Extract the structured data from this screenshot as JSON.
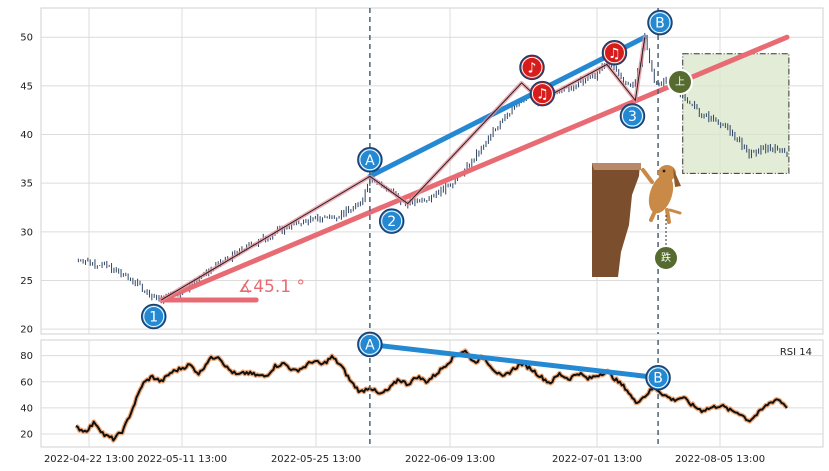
{
  "chart_data": [
    {
      "type": "line",
      "panel": "price",
      "x_ticks": [
        "2022-04-22 13:00",
        "2022-05-11 13:00",
        "2022-05-25 13:00",
        "2022-06-09 13:00",
        "2022-07-01 13:00",
        "2022-08-05 13:00"
      ],
      "y_ticks": [
        20,
        25,
        30,
        35,
        40,
        45,
        50
      ],
      "ylim": [
        19.5,
        53
      ],
      "price_anchors": [
        [
          0,
          27.2
        ],
        [
          3,
          26.6
        ],
        [
          6,
          25.0
        ],
        [
          8,
          23.4
        ],
        [
          9,
          23.0
        ],
        [
          11,
          23.8
        ],
        [
          13,
          25.3
        ],
        [
          15,
          26.6
        ],
        [
          17,
          27.9
        ],
        [
          20,
          29.4
        ],
        [
          22,
          30.4
        ],
        [
          24,
          31.1
        ],
        [
          26,
          31.4
        ],
        [
          28,
          31.8
        ],
        [
          30,
          32.9
        ],
        [
          31,
          35.8
        ],
        [
          32,
          34.9
        ],
        [
          33,
          34.3
        ],
        [
          34,
          33.2
        ],
        [
          35,
          32.9
        ],
        [
          37,
          33.5
        ],
        [
          39,
          34.6
        ],
        [
          41,
          36.3
        ],
        [
          43,
          38.8
        ],
        [
          45,
          41.7
        ],
        [
          47,
          43.5
        ],
        [
          48,
          44.0
        ],
        [
          49,
          43.3
        ],
        [
          50,
          44.4
        ],
        [
          52,
          44.8
        ],
        [
          54,
          45.8
        ],
        [
          55,
          46.2
        ],
        [
          56,
          47.5
        ],
        [
          57,
          46.5
        ],
        [
          58,
          45.2
        ],
        [
          59,
          45.1
        ],
        [
          60,
          50.0
        ],
        [
          61,
          45.3
        ],
        [
          62,
          45.5
        ],
        [
          63,
          45.0
        ],
        [
          64,
          44.0
        ],
        [
          66,
          42.1
        ],
        [
          68,
          41.2
        ],
        [
          70,
          39.2
        ],
        [
          71,
          38.0
        ],
        [
          73,
          38.6
        ],
        [
          75,
          38.2
        ]
      ],
      "overlay_lines": [
        {
          "color": "#e86b74",
          "points": [
            [
              9,
              23.0
            ],
            [
              75,
              50.0
            ]
          ]
        },
        {
          "color": "#e86b74",
          "points": [
            [
              9,
              23.0
            ],
            [
              19,
              23.0
            ]
          ]
        },
        {
          "color": "#2489d2",
          "points": [
            [
              31,
              35.7
            ],
            [
              60,
              50.0
            ]
          ]
        },
        {
          "color": "#e88f99",
          "points": [
            [
              9,
              23.0
            ],
            [
              31,
              35.7
            ],
            [
              35,
              32.9
            ],
            [
              47,
              45.3
            ],
            [
              49,
              43.5
            ],
            [
              56,
              47.2
            ],
            [
              59,
              43.5
            ],
            [
              60,
              50.0
            ]
          ]
        }
      ],
      "markers": [
        {
          "label": "1",
          "x": 8.2,
          "y": 21.3,
          "color": "#2489d2"
        },
        {
          "label": "A",
          "x": 31,
          "y": 37.4,
          "color": "#2489d2"
        },
        {
          "label": "2",
          "x": 33.3,
          "y": 31.1,
          "color": "#2489d2"
        },
        {
          "label": "3",
          "x": 58.7,
          "y": 41.9,
          "color": "#2489d2"
        },
        {
          "label": "B",
          "x": 61.6,
          "y": 51.5,
          "color": "#2489d2"
        },
        {
          "label": "♪",
          "x": 48.1,
          "y": 46.9,
          "color": "#d71c1c"
        },
        {
          "label": "♫",
          "x": 49.2,
          "y": 44.2,
          "color": "#d71c1c"
        },
        {
          "label": "♫",
          "x": 56.8,
          "y": 48.4,
          "color": "#d71c1c"
        }
      ],
      "annotation_angle": "∡45.1 °",
      "badge_up": "上",
      "badge_down": "跌",
      "forecast_box": {
        "x": [
          64,
          75.2
        ],
        "y": [
          36.0,
          48.3
        ]
      },
      "vlines_x": [
        31,
        61.4
      ]
    },
    {
      "type": "line",
      "panel": "rsi",
      "name": "RSI 14",
      "y_ticks": [
        20,
        40,
        60,
        80
      ],
      "ylim": [
        10,
        92
      ],
      "rsi_anchors": [
        [
          0,
          25
        ],
        [
          1,
          22
        ],
        [
          2,
          29
        ],
        [
          3,
          19
        ],
        [
          4,
          16
        ],
        [
          5,
          23
        ],
        [
          6,
          40
        ],
        [
          7,
          58
        ],
        [
          8,
          64
        ],
        [
          9,
          60
        ],
        [
          10,
          67
        ],
        [
          11,
          70
        ],
        [
          12,
          73
        ],
        [
          13,
          66
        ],
        [
          14,
          77
        ],
        [
          15,
          80
        ],
        [
          16,
          70
        ],
        [
          17,
          65
        ],
        [
          18,
          67
        ],
        [
          19,
          65
        ],
        [
          20,
          64
        ],
        [
          21,
          72
        ],
        [
          22,
          74
        ],
        [
          23,
          68
        ],
        [
          24,
          71
        ],
        [
          25,
          76
        ],
        [
          26,
          73
        ],
        [
          27,
          79
        ],
        [
          28,
          72
        ],
        [
          29,
          60
        ],
        [
          30,
          52
        ],
        [
          31,
          56
        ],
        [
          32,
          50
        ],
        [
          33,
          54
        ],
        [
          34,
          62
        ],
        [
          35,
          58
        ],
        [
          36,
          64
        ],
        [
          37,
          60
        ],
        [
          38,
          66
        ],
        [
          39,
          73
        ],
        [
          40,
          80
        ],
        [
          41,
          84
        ],
        [
          42,
          75
        ],
        [
          43,
          79
        ],
        [
          44,
          70
        ],
        [
          45,
          63
        ],
        [
          46,
          69
        ],
        [
          47,
          74
        ],
        [
          48,
          70
        ],
        [
          49,
          64
        ],
        [
          50,
          59
        ],
        [
          51,
          66
        ],
        [
          52,
          62
        ],
        [
          53,
          67
        ],
        [
          54,
          62
        ],
        [
          55,
          65
        ],
        [
          56,
          68
        ],
        [
          57,
          61
        ],
        [
          58,
          55
        ],
        [
          59,
          44
        ],
        [
          60,
          49
        ],
        [
          61,
          56
        ],
        [
          62,
          50
        ],
        [
          63,
          46
        ],
        [
          64,
          48
        ],
        [
          65,
          42
        ],
        [
          66,
          38
        ],
        [
          67,
          40
        ],
        [
          68,
          42
        ],
        [
          69,
          38
        ],
        [
          70,
          36
        ],
        [
          71,
          30
        ],
        [
          72,
          36
        ],
        [
          73,
          43
        ],
        [
          74,
          47
        ],
        [
          75,
          41
        ]
      ],
      "overlay_lines": [
        {
          "color": "#2489d2",
          "points": [
            [
              31,
              88.6
            ],
            [
              61.4,
              63.1
            ]
          ]
        }
      ],
      "markers": [
        {
          "label": "A",
          "x": 31,
          "y": 88.6,
          "color": "#2489d2"
        },
        {
          "label": "B",
          "x": 61.4,
          "y": 63.1,
          "color": "#2489d2"
        }
      ]
    }
  ],
  "colors": {
    "price_line": "#2f4565",
    "trend_red": "#e86b74",
    "trend_blue": "#2489d2",
    "zigzag": "#e88f99",
    "forecast_fill": "#d9e5c8",
    "rsi_outline": "#f0a878",
    "badge": "#556b2f"
  }
}
